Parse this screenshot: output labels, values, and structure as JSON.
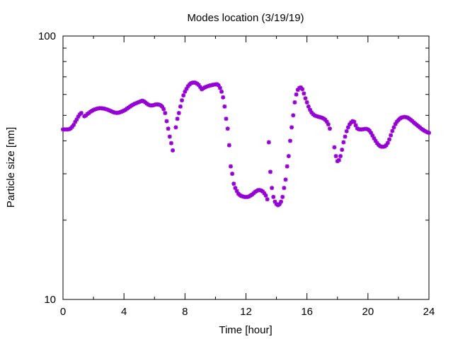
{
  "chart_data": {
    "type": "scatter",
    "title": "Modes location (3/19/19)",
    "xlabel": "Time [hour]",
    "ylabel": "Particle size [nm]",
    "xlim": [
      0,
      24
    ],
    "ylim": [
      10,
      100
    ],
    "yscale": "log",
    "grid": false,
    "marker_color": "#9400D3",
    "marker_symbol": "asterisk",
    "x_ticks": [
      0,
      4,
      8,
      12,
      16,
      20,
      24
    ],
    "x_tick_labels": [
      "0",
      "4",
      "8",
      "12",
      "16",
      "20",
      "24"
    ],
    "y_ticks": [
      10,
      100
    ],
    "y_tick_labels": [
      "10",
      "100"
    ],
    "series": [
      {
        "points": [
          [
            0.0,
            44.2
          ],
          [
            0.1,
            44.2
          ],
          [
            0.2,
            44.2
          ],
          [
            0.3,
            44.2
          ],
          [
            0.4,
            44.3
          ],
          [
            0.5,
            44.6
          ],
          [
            0.6,
            45.2
          ],
          [
            0.7,
            46.0
          ],
          [
            0.8,
            47.2
          ],
          [
            0.9,
            48.2
          ],
          [
            1.0,
            49.4
          ],
          [
            1.1,
            50.4
          ],
          [
            1.2,
            51.0
          ],
          [
            1.4,
            49.6
          ],
          [
            1.5,
            49.9
          ],
          [
            1.6,
            50.6
          ],
          [
            1.7,
            51.0
          ],
          [
            1.8,
            51.6
          ],
          [
            1.9,
            52.0
          ],
          [
            2.0,
            52.4
          ],
          [
            2.1,
            52.7
          ],
          [
            2.2,
            52.9
          ],
          [
            2.3,
            53.1
          ],
          [
            2.4,
            53.2
          ],
          [
            2.5,
            53.2
          ],
          [
            2.6,
            53.1
          ],
          [
            2.7,
            53.0
          ],
          [
            2.8,
            52.8
          ],
          [
            2.9,
            52.6
          ],
          [
            3.0,
            52.3
          ],
          [
            3.1,
            52.0
          ],
          [
            3.2,
            51.7
          ],
          [
            3.3,
            51.4
          ],
          [
            3.4,
            51.2
          ],
          [
            3.5,
            51.1
          ],
          [
            3.6,
            51.1
          ],
          [
            3.7,
            51.3
          ],
          [
            3.8,
            51.5
          ],
          [
            3.9,
            51.8
          ],
          [
            4.0,
            52.1
          ],
          [
            4.1,
            52.5
          ],
          [
            4.2,
            53.0
          ],
          [
            4.3,
            53.5
          ],
          [
            4.4,
            54.0
          ],
          [
            4.5,
            54.5
          ],
          [
            4.6,
            54.9
          ],
          [
            4.7,
            55.3
          ],
          [
            4.8,
            55.6
          ],
          [
            4.9,
            55.9
          ],
          [
            5.0,
            56.2
          ],
          [
            5.1,
            56.5
          ],
          [
            5.2,
            56.8
          ],
          [
            5.3,
            56.5
          ],
          [
            5.4,
            56.0
          ],
          [
            5.5,
            55.4
          ],
          [
            5.6,
            54.9
          ],
          [
            5.7,
            54.6
          ],
          [
            5.8,
            54.5
          ],
          [
            5.9,
            54.6
          ],
          [
            6.0,
            54.8
          ],
          [
            6.1,
            55.0
          ],
          [
            6.2,
            55.0
          ],
          [
            6.3,
            54.9
          ],
          [
            6.4,
            54.6
          ],
          [
            6.5,
            54.0
          ],
          [
            6.6,
            52.8
          ],
          [
            6.7,
            51.0
          ],
          [
            6.8,
            47.5
          ],
          [
            6.9,
            44.5
          ],
          [
            7.0,
            41.5
          ],
          [
            7.1,
            39.2
          ],
          [
            7.2,
            36.8
          ],
          [
            7.4,
            45.0
          ],
          [
            7.5,
            48.5
          ],
          [
            7.6,
            51.0
          ],
          [
            7.7,
            54.0
          ],
          [
            7.8,
            57.0
          ],
          [
            7.9,
            59.5
          ],
          [
            8.0,
            61.5
          ],
          [
            8.1,
            63.0
          ],
          [
            8.2,
            64.5
          ],
          [
            8.3,
            65.5
          ],
          [
            8.4,
            66.2
          ],
          [
            8.5,
            66.5
          ],
          [
            8.6,
            66.6
          ],
          [
            8.7,
            66.4
          ],
          [
            8.8,
            65.9
          ],
          [
            8.9,
            65.2
          ],
          [
            9.0,
            64.0
          ],
          [
            9.1,
            62.8
          ],
          [
            9.2,
            63.3
          ],
          [
            9.3,
            63.8
          ],
          [
            9.4,
            64.2
          ],
          [
            9.5,
            64.5
          ],
          [
            9.6,
            64.8
          ],
          [
            9.7,
            65.0
          ],
          [
            9.8,
            65.2
          ],
          [
            9.9,
            65.4
          ],
          [
            10.0,
            65.5
          ],
          [
            10.1,
            65.6
          ],
          [
            10.2,
            65.0
          ],
          [
            10.3,
            63.5
          ],
          [
            10.4,
            61.5
          ],
          [
            10.5,
            58.5
          ],
          [
            10.6,
            54.0
          ],
          [
            10.7,
            48.5
          ],
          [
            10.8,
            44.5
          ],
          [
            10.9,
            38.5
          ],
          [
            11.0,
            32.0
          ],
          [
            11.1,
            30.0
          ],
          [
            11.2,
            27.5
          ],
          [
            11.3,
            26.5
          ],
          [
            11.4,
            25.8
          ],
          [
            11.5,
            25.2
          ],
          [
            11.6,
            24.9
          ],
          [
            11.7,
            24.7
          ],
          [
            11.8,
            24.6
          ],
          [
            11.9,
            24.5
          ],
          [
            12.0,
            24.5
          ],
          [
            12.1,
            24.5
          ],
          [
            12.2,
            24.6
          ],
          [
            12.3,
            24.8
          ],
          [
            12.4,
            25.0
          ],
          [
            12.5,
            25.3
          ],
          [
            12.6,
            25.6
          ],
          [
            12.7,
            25.8
          ],
          [
            12.8,
            26.0
          ],
          [
            12.9,
            26.0
          ],
          [
            13.0,
            25.9
          ],
          [
            13.1,
            25.7
          ],
          [
            13.2,
            25.3
          ],
          [
            13.3,
            24.8
          ],
          [
            13.4,
            24.0
          ],
          [
            13.5,
            39.5
          ],
          [
            13.6,
            30.5
          ],
          [
            13.7,
            26.5
          ],
          [
            13.8,
            24.5
          ],
          [
            13.9,
            23.5
          ],
          [
            14.0,
            23.0
          ],
          [
            14.1,
            22.8
          ],
          [
            14.2,
            23.0
          ],
          [
            14.3,
            23.5
          ],
          [
            14.4,
            24.5
          ],
          [
            14.5,
            26.5
          ],
          [
            14.6,
            28.5
          ],
          [
            14.7,
            32.0
          ],
          [
            14.8,
            35.0
          ],
          [
            14.9,
            40.0
          ],
          [
            15.0,
            45.0
          ],
          [
            15.1,
            50.0
          ],
          [
            15.2,
            56.0
          ],
          [
            15.3,
            60.0
          ],
          [
            15.4,
            62.5
          ],
          [
            15.5,
            63.5
          ],
          [
            15.6,
            63.8
          ],
          [
            15.7,
            62.8
          ],
          [
            15.8,
            60.5
          ],
          [
            15.9,
            58.0
          ],
          [
            16.0,
            56.0
          ],
          [
            16.1,
            54.0
          ],
          [
            16.2,
            52.5
          ],
          [
            16.3,
            51.3
          ],
          [
            16.4,
            50.5
          ],
          [
            16.5,
            50.0
          ],
          [
            16.6,
            49.7
          ],
          [
            16.7,
            49.5
          ],
          [
            16.8,
            49.3
          ],
          [
            16.9,
            49.1
          ],
          [
            17.0,
            48.9
          ],
          [
            17.1,
            48.6
          ],
          [
            17.2,
            48.1
          ],
          [
            17.3,
            47.3
          ],
          [
            17.4,
            46.2
          ],
          [
            17.5,
            44.5
          ],
          [
            17.8,
            37.8
          ],
          [
            17.9,
            35.0
          ],
          [
            18.0,
            33.5
          ],
          [
            18.1,
            33.8
          ],
          [
            18.2,
            35.0
          ],
          [
            18.3,
            37.0
          ],
          [
            18.4,
            39.5
          ],
          [
            18.5,
            41.5
          ],
          [
            18.6,
            43.5
          ],
          [
            18.7,
            45.0
          ],
          [
            18.8,
            46.2
          ],
          [
            18.9,
            47.0
          ],
          [
            19.0,
            47.5
          ],
          [
            19.1,
            47.2
          ],
          [
            19.2,
            45.8
          ],
          [
            19.3,
            44.6
          ],
          [
            19.4,
            44.3
          ],
          [
            19.5,
            44.2
          ],
          [
            19.6,
            44.2
          ],
          [
            19.7,
            44.3
          ],
          [
            19.8,
            44.4
          ],
          [
            19.9,
            44.4
          ],
          [
            20.0,
            44.2
          ],
          [
            20.1,
            43.7
          ],
          [
            20.2,
            42.9
          ],
          [
            20.3,
            41.9
          ],
          [
            20.4,
            40.9
          ],
          [
            20.5,
            40.0
          ],
          [
            20.6,
            39.2
          ],
          [
            20.7,
            38.6
          ],
          [
            20.8,
            38.2
          ],
          [
            20.9,
            38.0
          ],
          [
            21.0,
            38.0
          ],
          [
            21.1,
            38.1
          ],
          [
            21.2,
            38.5
          ],
          [
            21.3,
            39.3
          ],
          [
            21.4,
            40.5
          ],
          [
            21.5,
            42.0
          ],
          [
            21.6,
            43.6
          ],
          [
            21.7,
            45.0
          ],
          [
            21.8,
            46.3
          ],
          [
            21.9,
            47.3
          ],
          [
            22.0,
            48.0
          ],
          [
            22.1,
            48.6
          ],
          [
            22.2,
            49.0
          ],
          [
            22.3,
            49.2
          ],
          [
            22.4,
            49.3
          ],
          [
            22.5,
            49.2
          ],
          [
            22.6,
            49.0
          ],
          [
            22.7,
            48.6
          ],
          [
            22.8,
            48.1
          ],
          [
            22.9,
            47.6
          ],
          [
            23.0,
            47.0
          ],
          [
            23.1,
            46.5
          ],
          [
            23.2,
            46.0
          ],
          [
            23.3,
            45.5
          ],
          [
            23.4,
            45.0
          ],
          [
            23.5,
            44.5
          ],
          [
            23.6,
            44.1
          ],
          [
            23.7,
            43.7
          ],
          [
            23.8,
            43.4
          ],
          [
            23.9,
            43.1
          ],
          [
            24.0,
            42.9
          ]
        ]
      }
    ]
  }
}
